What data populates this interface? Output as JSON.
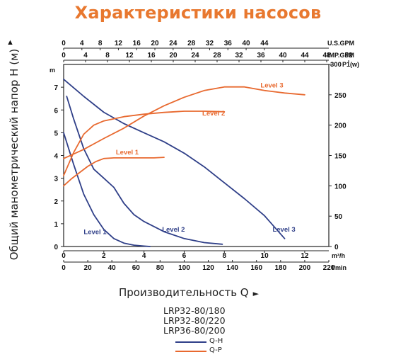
{
  "chart_data": {
    "type": "line",
    "title": "Характеристики насосов",
    "ylabel": "Общий манометрический напор H (м)",
    "xlabel": "Производительность Q",
    "y_unit": "m",
    "y2_unit": "P1(w)",
    "x_unit_bottom1": "m³/h",
    "x_unit_bottom2": "l/min",
    "x_unit_top1": "U.S.GPM",
    "x_unit_top2": "IMP.GPM",
    "ylim": [
      0,
      8
    ],
    "y2lim": [
      0,
      300
    ],
    "xlim": [
      0,
      13.2
    ],
    "y_ticks": [
      0,
      1,
      2,
      3,
      4,
      5,
      6,
      7
    ],
    "y2_ticks": [
      0,
      50,
      100,
      150,
      200,
      250,
      300
    ],
    "x_ticks_m3h": [
      0,
      2,
      4,
      6,
      8,
      10,
      12
    ],
    "x_ticks_lmin": [
      0,
      20,
      40,
      60,
      80,
      100,
      120,
      140,
      160,
      180,
      200,
      220
    ],
    "x_ticks_usgpm": [
      0,
      4,
      8,
      12,
      16,
      20,
      24,
      28,
      32,
      36,
      40,
      44
    ],
    "x_ticks_impgpm": [
      0,
      4,
      8,
      12,
      16,
      20,
      24,
      28,
      32,
      36,
      40,
      44,
      48,
      52
    ],
    "models": [
      "LRP32-80/180",
      "LRP32-80/220",
      "LRP36-80/200"
    ],
    "legend": [
      {
        "label": "Q-H",
        "color": "#2f3f88"
      },
      {
        "label": "Q-P",
        "color": "#e8692f"
      }
    ],
    "colors": {
      "qh": "#2f3f88",
      "qp": "#e8692f",
      "title": "#e8782f"
    },
    "series_qh": [
      {
        "name": "Level 1",
        "x": [
          0,
          0.5,
          1.0,
          1.5,
          2.0,
          2.5,
          3.0,
          3.5,
          4.0,
          4.3
        ],
        "y": [
          5.0,
          3.6,
          2.3,
          1.4,
          0.75,
          0.35,
          0.15,
          0.06,
          0.02,
          0
        ]
      },
      {
        "name": "Level 2",
        "x": [
          0.15,
          0.5,
          1.0,
          1.5,
          2.0,
          2.5,
          3.0,
          3.5,
          4.0,
          5.0,
          6.0,
          7.0,
          7.9
        ],
        "y": [
          6.6,
          5.6,
          4.3,
          3.4,
          3.0,
          2.6,
          1.9,
          1.4,
          1.1,
          0.65,
          0.35,
          0.17,
          0.1
        ]
      },
      {
        "name": "Level 3",
        "x": [
          0,
          1.0,
          2.0,
          3.0,
          4.0,
          5.0,
          6.0,
          7.0,
          8.0,
          9.0,
          10.0,
          11.0
        ],
        "y": [
          7.35,
          6.6,
          5.9,
          5.4,
          5.0,
          4.6,
          4.1,
          3.5,
          2.8,
          2.1,
          1.35,
          0.35
        ]
      }
    ],
    "series_qp": [
      {
        "name": "Level 1",
        "x": [
          0,
          0.4,
          0.8,
          1.2,
          1.6,
          2.0,
          2.5,
          3.0,
          3.5,
          4.0,
          4.5,
          5.0
        ],
        "y": [
          100,
          112,
          122,
          132,
          140,
          145,
          146,
          146,
          146,
          146,
          146,
          147
        ]
      },
      {
        "name": "Level 2",
        "x": [
          0,
          0.5,
          1.0,
          1.5,
          2.0,
          3.0,
          4.0,
          5.0,
          6.0,
          7.0,
          8.0
        ],
        "y": [
          117,
          155,
          185,
          200,
          207,
          214,
          218,
          221,
          223,
          223,
          222
        ]
      },
      {
        "name": "Level 3",
        "x": [
          0,
          1.0,
          2.0,
          3.0,
          4.0,
          5.0,
          6.0,
          7.0,
          8.0,
          9.0,
          10.0,
          11.0,
          12.0
        ],
        "y": [
          145,
          160,
          178,
          195,
          215,
          232,
          246,
          257,
          263,
          263,
          257,
          253,
          250
        ]
      }
    ]
  }
}
